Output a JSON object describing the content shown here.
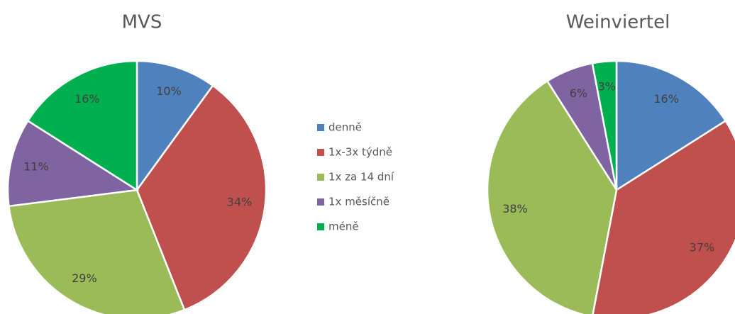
{
  "chart_data": [
    {
      "type": "pie",
      "title": "MVS",
      "categories": [
        "denně",
        "1x-3x týdně",
        "1x za 14 dní",
        "1x měsíčně",
        "méně"
      ],
      "values": [
        10,
        34,
        29,
        11,
        16
      ],
      "value_labels": [
        "10%",
        "34%",
        "29%",
        "11%",
        "16%"
      ],
      "colors": [
        "#4f81bd",
        "#c0504d",
        "#9bbb59",
        "#8064a2",
        "#00b050"
      ],
      "legend": "right"
    },
    {
      "type": "pie",
      "title": "Weinviertel",
      "categories": [
        "denně",
        "1x-3x týdně",
        "1x za 14 dní",
        "1x měsíčně",
        "méně"
      ],
      "values": [
        16,
        37,
        38,
        6,
        3
      ],
      "value_labels": [
        "16%",
        "37%",
        "38%",
        "6%",
        "3%"
      ],
      "colors": [
        "#4f81bd",
        "#c0504d",
        "#9bbb59",
        "#8064a2",
        "#00b050"
      ]
    }
  ]
}
